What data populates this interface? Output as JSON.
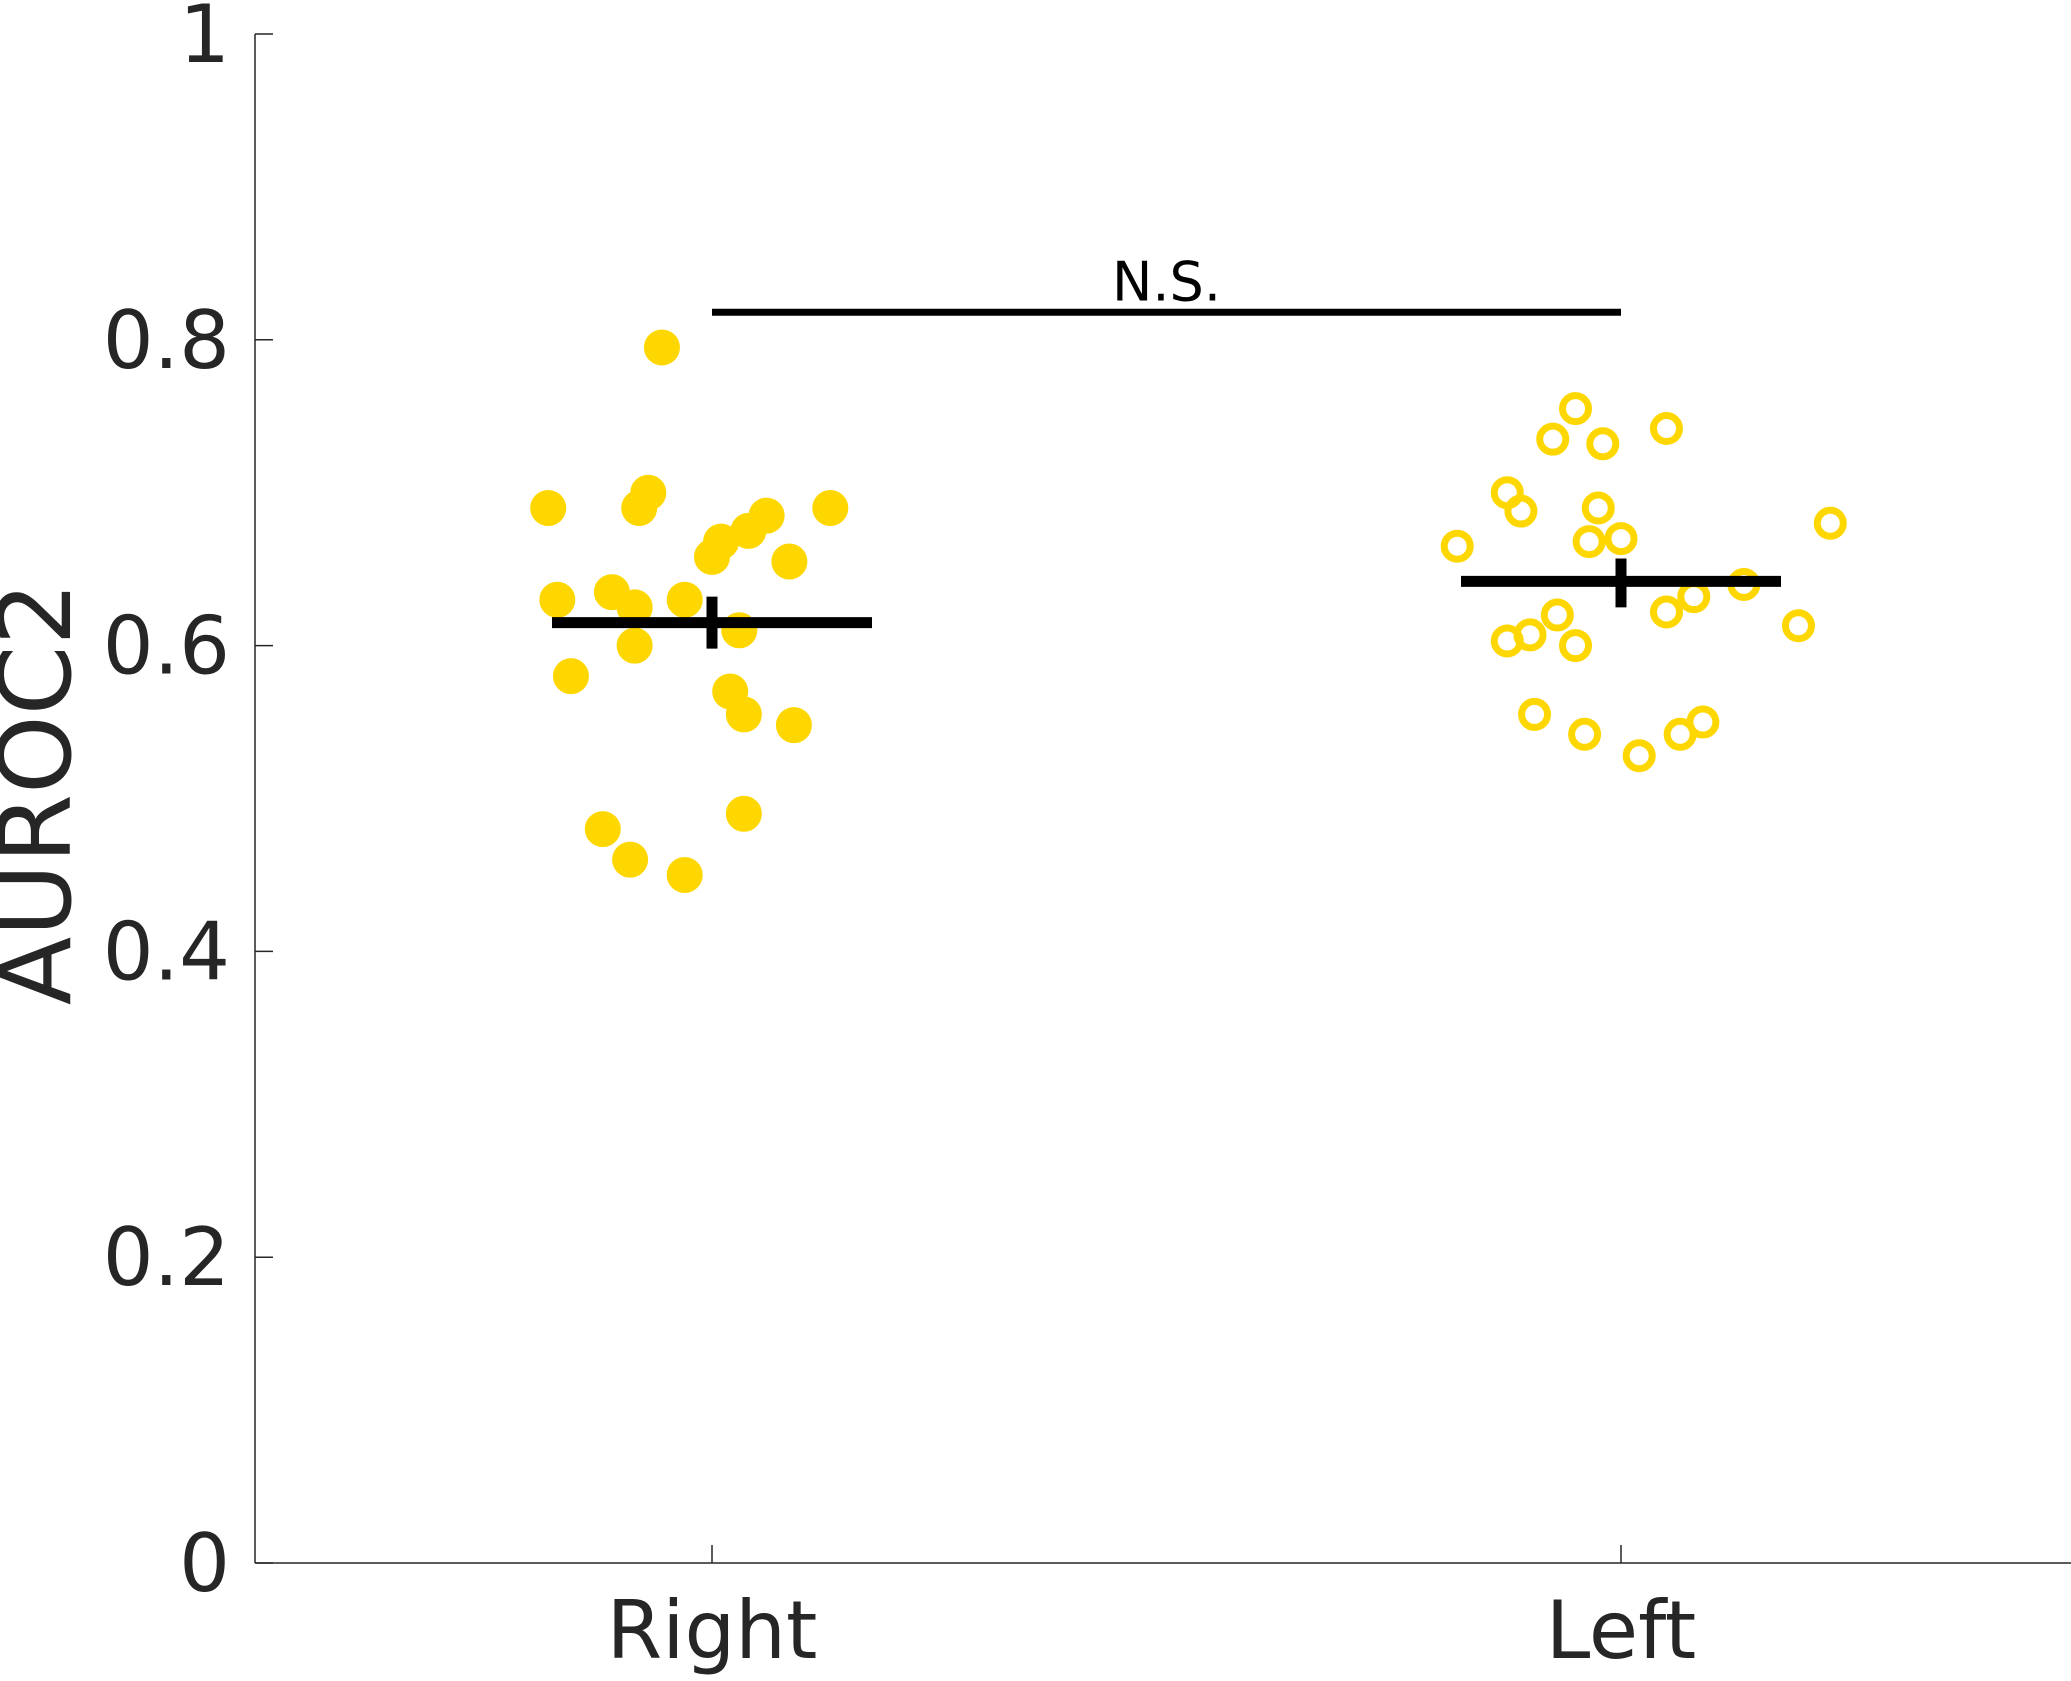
{
  "chart_data": {
    "type": "scatter",
    "title": "",
    "xlabel": "",
    "ylabel": "AUROC2",
    "ylim": [
      0,
      1
    ],
    "yticks": [
      0,
      0.2,
      0.4,
      0.6,
      0.8,
      1
    ],
    "ytick_labels": [
      "0",
      "0.2",
      "0.4",
      "0.6",
      "0.8",
      "1"
    ],
    "categories": [
      "Right",
      "Left"
    ],
    "grid": false,
    "colors": {
      "points": "#FFD700",
      "summary": "#000000",
      "axis": "#262626"
    },
    "series": [
      {
        "category": "Right",
        "marker": "filled",
        "mean": 0.615,
        "sem": [
          0.598,
          0.632
        ],
        "points": [
          {
            "jitter": -0.18,
            "y": 0.69
          },
          {
            "jitter": -0.17,
            "y": 0.63
          },
          {
            "jitter": -0.155,
            "y": 0.58
          },
          {
            "jitter": -0.12,
            "y": 0.48
          },
          {
            "jitter": -0.11,
            "y": 0.635
          },
          {
            "jitter": -0.09,
            "y": 0.46
          },
          {
            "jitter": -0.085,
            "y": 0.625
          },
          {
            "jitter": -0.085,
            "y": 0.6
          },
          {
            "jitter": -0.08,
            "y": 0.69
          },
          {
            "jitter": -0.07,
            "y": 0.7
          },
          {
            "jitter": -0.055,
            "y": 0.795
          },
          {
            "jitter": -0.03,
            "y": 0.45
          },
          {
            "jitter": -0.03,
            "y": 0.63
          },
          {
            "jitter": 0.0,
            "y": 0.658
          },
          {
            "jitter": 0.01,
            "y": 0.668
          },
          {
            "jitter": 0.02,
            "y": 0.57
          },
          {
            "jitter": 0.03,
            "y": 0.61
          },
          {
            "jitter": 0.035,
            "y": 0.555
          },
          {
            "jitter": 0.035,
            "y": 0.49
          },
          {
            "jitter": 0.04,
            "y": 0.675
          },
          {
            "jitter": 0.06,
            "y": 0.685
          },
          {
            "jitter": 0.085,
            "y": 0.655
          },
          {
            "jitter": 0.09,
            "y": 0.548
          },
          {
            "jitter": 0.13,
            "y": 0.69
          }
        ]
      },
      {
        "category": "Left",
        "marker": "open",
        "mean": 0.642,
        "sem": [
          0.625,
          0.657
        ],
        "points": [
          {
            "jitter": -0.18,
            "y": 0.665
          },
          {
            "jitter": -0.125,
            "y": 0.603
          },
          {
            "jitter": -0.125,
            "y": 0.7
          },
          {
            "jitter": -0.11,
            "y": 0.688
          },
          {
            "jitter": -0.1,
            "y": 0.607
          },
          {
            "jitter": -0.095,
            "y": 0.555
          },
          {
            "jitter": -0.075,
            "y": 0.735
          },
          {
            "jitter": -0.07,
            "y": 0.62
          },
          {
            "jitter": -0.05,
            "y": 0.6
          },
          {
            "jitter": -0.05,
            "y": 0.755
          },
          {
            "jitter": -0.04,
            "y": 0.542
          },
          {
            "jitter": -0.035,
            "y": 0.668
          },
          {
            "jitter": -0.025,
            "y": 0.69
          },
          {
            "jitter": -0.02,
            "y": 0.732
          },
          {
            "jitter": 0.0,
            "y": 0.67
          },
          {
            "jitter": 0.02,
            "y": 0.528
          },
          {
            "jitter": 0.05,
            "y": 0.622
          },
          {
            "jitter": 0.05,
            "y": 0.742
          },
          {
            "jitter": 0.065,
            "y": 0.542
          },
          {
            "jitter": 0.08,
            "y": 0.632
          },
          {
            "jitter": 0.09,
            "y": 0.55
          },
          {
            "jitter": 0.135,
            "y": 0.64
          },
          {
            "jitter": 0.195,
            "y": 0.613
          },
          {
            "jitter": 0.23,
            "y": 0.68
          }
        ]
      }
    ],
    "annotations": [
      {
        "text": "N.S.",
        "y": 0.818,
        "from": "Right",
        "to": "Left"
      }
    ]
  }
}
